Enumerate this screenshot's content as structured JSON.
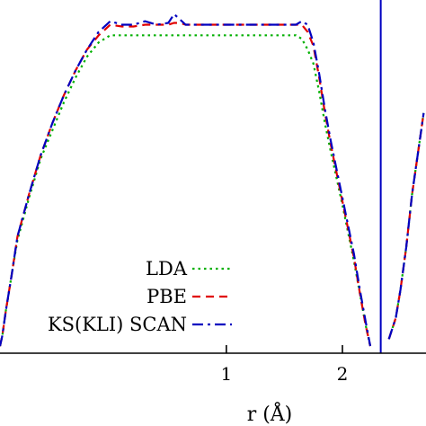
{
  "chart_data": {
    "type": "line",
    "xlabel": "r (Å)",
    "ylabel": "",
    "title": "",
    "xlim": [
      -0.95,
      2.72
    ],
    "ylim": [
      0.0,
      1.0
    ],
    "xticks": [
      1,
      2
    ],
    "xtick_labels": [
      "1",
      "2"
    ],
    "legend": "center-left",
    "vline": {
      "x": 2.33,
      "color": "#0000c0"
    },
    "series": [
      {
        "name": "LDA",
        "color": "#00b000",
        "dash": "dotted",
        "x": [
          -0.95,
          -0.93,
          -0.9,
          -0.85,
          -0.8,
          -0.7,
          -0.6,
          -0.5,
          -0.4,
          -0.3,
          -0.2,
          -0.1,
          0.0,
          0.1,
          0.2,
          0.3,
          0.4,
          0.5,
          0.55,
          0.6,
          0.65,
          0.7,
          0.8,
          0.9,
          1.0,
          1.1,
          1.2,
          1.3,
          1.4,
          1.5,
          1.6,
          1.65,
          1.7,
          1.75,
          1.8,
          1.85,
          1.9,
          2.0,
          2.1,
          2.15,
          2.2,
          2.24,
          2.3,
          2.4,
          2.46,
          2.5,
          2.55,
          2.6,
          2.7
        ],
        "y": [
          0.02,
          0.05,
          0.12,
          0.22,
          0.32,
          0.44,
          0.55,
          0.63,
          0.71,
          0.78,
          0.84,
          0.88,
          0.9,
          0.9,
          0.9,
          0.9,
          0.9,
          0.9,
          0.9,
          0.9,
          0.9,
          0.9,
          0.9,
          0.9,
          0.9,
          0.9,
          0.9,
          0.9,
          0.9,
          0.9,
          0.9,
          0.89,
          0.86,
          0.82,
          0.74,
          0.65,
          0.57,
          0.42,
          0.26,
          0.17,
          0.08,
          0.02,
          null,
          0.04,
          0.1,
          0.18,
          0.3,
          0.45,
          0.68
        ]
      },
      {
        "name": "PBE",
        "color": "#e00000",
        "dash": "dashed",
        "x": [
          -0.95,
          -0.93,
          -0.9,
          -0.85,
          -0.8,
          -0.7,
          -0.6,
          -0.5,
          -0.4,
          -0.3,
          -0.2,
          -0.1,
          0.0,
          0.1,
          0.2,
          0.3,
          0.4,
          0.5,
          0.55,
          0.6,
          0.65,
          0.7,
          0.8,
          0.9,
          1.0,
          1.1,
          1.2,
          1.3,
          1.4,
          1.5,
          1.6,
          1.65,
          1.7,
          1.75,
          1.8,
          1.85,
          1.9,
          2.0,
          2.1,
          2.15,
          2.2,
          2.24,
          2.3,
          2.4,
          2.46,
          2.5,
          2.55,
          2.6,
          2.7
        ],
        "y": [
          0.02,
          0.05,
          0.12,
          0.22,
          0.33,
          0.45,
          0.56,
          0.65,
          0.73,
          0.8,
          0.86,
          0.9,
          0.93,
          0.925,
          0.925,
          0.93,
          0.93,
          0.93,
          0.935,
          0.935,
          0.93,
          0.93,
          0.93,
          0.93,
          0.93,
          0.93,
          0.93,
          0.93,
          0.93,
          0.93,
          0.93,
          0.93,
          0.91,
          0.87,
          0.78,
          0.68,
          0.59,
          0.43,
          0.27,
          0.17,
          0.08,
          0.02,
          null,
          0.04,
          0.1,
          0.18,
          0.3,
          0.45,
          0.68
        ]
      },
      {
        "name": "KS(KLI) SCAN",
        "color": "#0000c0",
        "dash": "dash-dot",
        "x": [
          -0.95,
          -0.93,
          -0.9,
          -0.85,
          -0.8,
          -0.7,
          -0.6,
          -0.5,
          -0.4,
          -0.3,
          -0.2,
          -0.1,
          0.0,
          0.1,
          0.2,
          0.3,
          0.4,
          0.5,
          0.55,
          0.6,
          0.65,
          0.7,
          0.8,
          0.9,
          1.0,
          1.1,
          1.2,
          1.3,
          1.4,
          1.5,
          1.6,
          1.65,
          1.7,
          1.75,
          1.8,
          1.85,
          1.9,
          2.0,
          2.1,
          2.15,
          2.2,
          2.24,
          2.3,
          2.4,
          2.46,
          2.5,
          2.55,
          2.6,
          2.7
        ],
        "y": [
          0.02,
          0.05,
          0.12,
          0.22,
          0.33,
          0.45,
          0.56,
          0.65,
          0.73,
          0.8,
          0.86,
          0.91,
          0.94,
          0.93,
          0.93,
          0.94,
          0.93,
          0.935,
          0.96,
          0.945,
          0.93,
          0.93,
          0.93,
          0.93,
          0.93,
          0.93,
          0.93,
          0.93,
          0.93,
          0.93,
          0.93,
          0.94,
          0.93,
          0.88,
          0.79,
          0.69,
          0.6,
          0.44,
          0.28,
          0.18,
          0.09,
          0.02,
          null,
          0.04,
          0.1,
          0.18,
          0.3,
          0.45,
          0.68
        ]
      }
    ]
  }
}
